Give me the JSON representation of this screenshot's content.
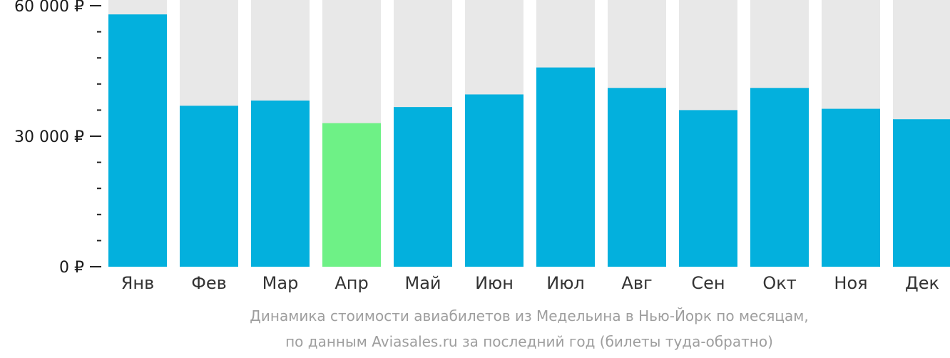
{
  "chart_data": {
    "type": "bar",
    "categories": [
      "Янв",
      "Фев",
      "Мар",
      "Апр",
      "Май",
      "Июн",
      "Июл",
      "Авг",
      "Сен",
      "Окт",
      "Ноя",
      "Дек"
    ],
    "values": [
      58000,
      37000,
      38200,
      33000,
      36700,
      39600,
      45800,
      41100,
      36000,
      41100,
      36300,
      33900
    ],
    "highlight_index": 3,
    "ylim": [
      0,
      60000
    ],
    "y_ticks": [
      {
        "value": 0,
        "label": "0 ₽"
      },
      {
        "value": 30000,
        "label": "30 000 ₽"
      },
      {
        "value": 60000,
        "label": "60 000 ₽"
      }
    ],
    "minor_tick_step": 6000,
    "colors": {
      "bar": "#03b0dd",
      "highlight": "#6ef186",
      "background_column": "#e8e8e8",
      "axis": "#222222"
    }
  },
  "caption": {
    "line1": "Динамика стоимости авиабилетов из Медельина в Нью-Йорк по месяцам,",
    "line2": "по данным Aviasales.ru за последний год (билеты туда-обратно)"
  }
}
